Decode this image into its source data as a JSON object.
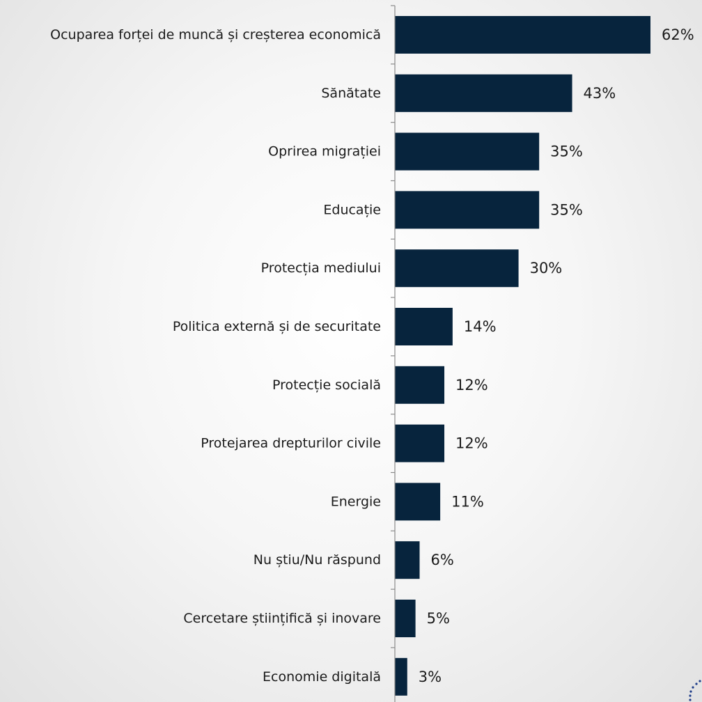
{
  "chart_data": {
    "type": "bar",
    "orientation": "horizontal",
    "categories": [
      "Ocuparea forței de muncă și creșterea economică",
      "Sănătate",
      "Oprirea migrației",
      "Educație",
      "Protecția mediului",
      "Politica externă și de securitate",
      "Protecție socială",
      "Protejarea drepturilor civile",
      "Energie",
      "Nu știu/Nu răspund",
      "Cercetare științifică și inovare",
      "Economie digitală"
    ],
    "values": [
      62,
      43,
      35,
      35,
      30,
      14,
      12,
      12,
      11,
      6,
      5,
      3
    ],
    "value_labels": [
      "62%",
      "43%",
      "35%",
      "35%",
      "30%",
      "14%",
      "12%",
      "12%",
      "11%",
      "6%",
      "5%",
      "3%"
    ],
    "unit": "%",
    "xlim": [
      0,
      62
    ],
    "colors": {
      "bar": "#07243d",
      "axis": "#8a8a8a",
      "text": "#1a1a1a"
    },
    "grid": false,
    "legend": "none"
  }
}
